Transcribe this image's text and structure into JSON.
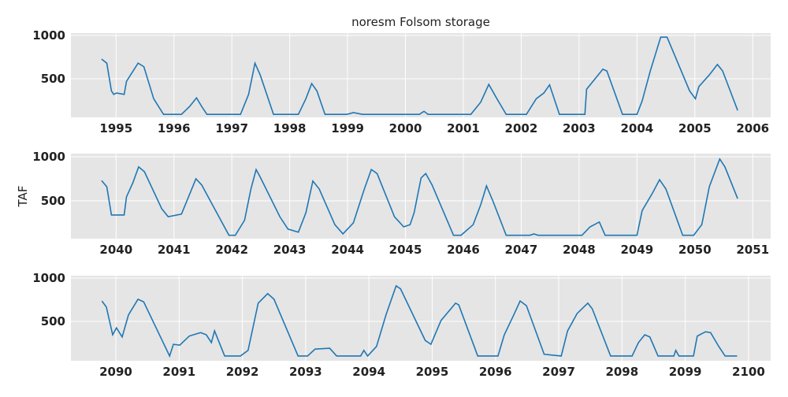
{
  "chart_data": [
    {
      "type": "line",
      "title": "noresm Folsom storage",
      "x": [
        1994.75,
        1994.84,
        1994.92,
        1994.96,
        1995.01,
        1995.14,
        1995.18,
        1995.38,
        1995.48,
        1995.65,
        1995.82,
        1996.13,
        1996.27,
        1996.39,
        1996.48,
        1996.57,
        1997.15,
        1997.29,
        1997.4,
        1997.49,
        1997.72,
        1998.15,
        1998.28,
        1998.38,
        1998.47,
        1998.61,
        1998.99,
        1999.1,
        1999.26,
        2000.24,
        2000.32,
        2000.39,
        2001.13,
        2001.3,
        2001.44,
        2001.58,
        2001.74,
        2002.09,
        2002.26,
        2002.39,
        2002.49,
        2002.66,
        2003.1,
        2003.13,
        2003.35,
        2003.41,
        2003.48,
        2003.75,
        2004.0,
        2004.09,
        2004.23,
        2004.41,
        2004.52,
        2004.91,
        2005.01,
        2005.07,
        2005.25,
        2005.39,
        2005.48,
        2005.74
      ],
      "series": [
        {
          "name": "storage",
          "color": "#1f77b4",
          "values": [
            727,
            680,
            360,
            320,
            336,
            320,
            470,
            680,
            640,
            270,
            90,
            90,
            180,
            280,
            180,
            90,
            90,
            320,
            680,
            545,
            90,
            90,
            270,
            445,
            360,
            90,
            90,
            110,
            90,
            90,
            125,
            90,
            90,
            230,
            435,
            270,
            90,
            90,
            270,
            335,
            430,
            90,
            90,
            380,
            560,
            610,
            590,
            90,
            90,
            245,
            590,
            980,
            980,
            360,
            270,
            410,
            545,
            665,
            590,
            135
          ]
        }
      ],
      "xlim": [
        1994.22,
        2006.31
      ],
      "xticks": [
        1995,
        1996,
        1997,
        1998,
        1999,
        2000,
        2001,
        2002,
        2003,
        2004,
        2005,
        2006
      ],
      "ylim": [
        55,
        1027
      ],
      "yticks": [
        500,
        1000
      ],
      "grid": true
    },
    {
      "type": "line",
      "ylabel": "TAF",
      "x": [
        2039.75,
        2039.84,
        2039.92,
        2040.04,
        2040.14,
        2040.18,
        2040.29,
        2040.39,
        2040.49,
        2040.79,
        2040.9,
        2041.13,
        2041.38,
        2041.48,
        2041.95,
        2042.06,
        2042.22,
        2042.33,
        2042.42,
        2042.49,
        2042.83,
        2042.97,
        2043.15,
        2043.28,
        2043.4,
        2043.51,
        2043.78,
        2043.92,
        2044.1,
        2044.29,
        2044.41,
        2044.51,
        2044.81,
        2044.97,
        2045.08,
        2045.15,
        2045.27,
        2045.35,
        2045.46,
        2045.83,
        2045.96,
        2046.17,
        2046.3,
        2046.4,
        2046.51,
        2046.74,
        2047.15,
        2047.22,
        2047.29,
        2048.05,
        2048.19,
        2048.35,
        2048.45,
        2049.0,
        2049.09,
        2049.27,
        2049.39,
        2049.5,
        2049.79,
        2049.98,
        2050.12,
        2050.25,
        2050.43,
        2050.52,
        2050.74
      ],
      "series": [
        {
          "name": "storage",
          "color": "#1f77b4",
          "values": [
            730,
            660,
            340,
            340,
            340,
            545,
            705,
            885,
            830,
            410,
            320,
            350,
            750,
            680,
            110,
            110,
            280,
            635,
            855,
            770,
            320,
            180,
            145,
            365,
            725,
            635,
            230,
            125,
            250,
            635,
            855,
            810,
            320,
            205,
            230,
            365,
            760,
            810,
            680,
            110,
            110,
            230,
            455,
            670,
            500,
            110,
            110,
            125,
            110,
            110,
            205,
            260,
            110,
            110,
            390,
            590,
            740,
            635,
            110,
            110,
            230,
            660,
            975,
            885,
            525
          ]
        }
      ],
      "xlim": [
        2039.22,
        2051.31
      ],
      "xticks": [
        2040,
        2041,
        2042,
        2043,
        2044,
        2045,
        2046,
        2047,
        2048,
        2049,
        2050,
        2051
      ],
      "ylim": [
        71,
        1036
      ],
      "yticks": [
        500,
        1000
      ],
      "grid": true
    },
    {
      "type": "line",
      "x": [
        2089.78,
        2089.85,
        2089.95,
        2090.01,
        2090.1,
        2090.2,
        2090.35,
        2090.44,
        2090.85,
        2090.91,
        2091.01,
        2091.16,
        2091.34,
        2091.43,
        2091.51,
        2091.56,
        2091.72,
        2091.97,
        2092.09,
        2092.25,
        2092.4,
        2092.5,
        2092.88,
        2093.03,
        2093.15,
        2093.38,
        2093.49,
        2093.87,
        2093.92,
        2093.98,
        2094.12,
        2094.27,
        2094.43,
        2094.5,
        2094.89,
        2094.98,
        2095.14,
        2095.37,
        2095.42,
        2095.72,
        2096.04,
        2096.14,
        2096.29,
        2096.39,
        2096.49,
        2096.77,
        2097.04,
        2097.14,
        2097.29,
        2097.46,
        2097.53,
        2097.82,
        2098.16,
        2098.26,
        2098.36,
        2098.44,
        2098.57,
        2098.82,
        2098.85,
        2098.9,
        2099.13,
        2099.19,
        2099.32,
        2099.4,
        2099.53,
        2099.63,
        2099.82
      ],
      "series": [
        {
          "name": "storage",
          "color": "#1f77b4",
          "values": [
            735,
            665,
            345,
            425,
            320,
            575,
            755,
            725,
            100,
            235,
            225,
            330,
            370,
            345,
            255,
            390,
            100,
            100,
            165,
            710,
            820,
            755,
            100,
            100,
            180,
            190,
            100,
            100,
            165,
            100,
            210,
            575,
            910,
            875,
            280,
            235,
            510,
            710,
            690,
            100,
            100,
            345,
            575,
            735,
            680,
            120,
            100,
            390,
            590,
            710,
            645,
            100,
            100,
            255,
            345,
            320,
            100,
            100,
            165,
            100,
            100,
            330,
            380,
            370,
            210,
            100,
            100
          ]
        }
      ],
      "xlim": [
        2089.29,
        2100.35
      ],
      "xticks": [
        2090,
        2091,
        2092,
        2093,
        2094,
        2095,
        2096,
        2097,
        2098,
        2099,
        2100
      ],
      "ylim": [
        45,
        1027
      ],
      "yticks": [
        500,
        1000
      ],
      "grid": true
    }
  ]
}
